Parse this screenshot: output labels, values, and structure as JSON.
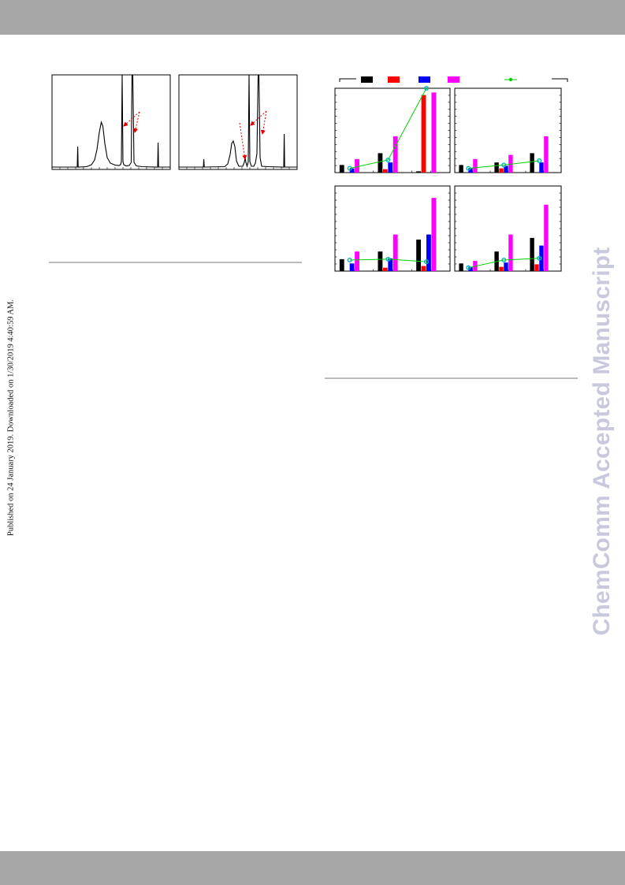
{
  "watermark": "ChemComm Accepted Manuscript",
  "published_note": "Published on 24 January 2019. Downloaded on 1/30/2019 4:40:59 AM.",
  "colors": {
    "bar_gray": "#a7a7a7",
    "watermark": "#c9c9de",
    "black": "#000000",
    "red": "#ff0000",
    "blue": "#0000ff",
    "magenta": "#ff00ff",
    "green": "#00d000",
    "arrow": "#e00000"
  },
  "chart_data": [
    {
      "type": "bar",
      "panel": "top-left",
      "groups": 3,
      "series": [
        {
          "color": "black",
          "values": [
            0.09,
            0.23,
            0.015
          ]
        },
        {
          "color": "red",
          "values": [
            0.0,
            0.04,
            0.92
          ]
        },
        {
          "color": "blue",
          "values": [
            0.05,
            0.12,
            0.0
          ]
        },
        {
          "color": "magenta",
          "values": [
            0.16,
            0.43,
            0.95
          ]
        }
      ],
      "line": [
        0.05,
        0.15,
        1.0
      ]
    },
    {
      "type": "bar",
      "panel": "top-right",
      "groups": 3,
      "series": [
        {
          "color": "black",
          "values": [
            0.09,
            0.12,
            0.23
          ]
        },
        {
          "color": "red",
          "values": [
            0.0,
            0.05,
            0.0
          ]
        },
        {
          "color": "blue",
          "values": [
            0.05,
            0.08,
            0.12
          ]
        },
        {
          "color": "magenta",
          "values": [
            0.16,
            0.21,
            0.43
          ]
        }
      ],
      "line": [
        0.05,
        0.09,
        0.14
      ]
    },
    {
      "type": "bar",
      "panel": "bottom-left",
      "groups": 3,
      "series": [
        {
          "color": "black",
          "values": [
            0.14,
            0.23,
            0.37
          ]
        },
        {
          "color": "red",
          "values": [
            0.0,
            0.04,
            0.06
          ]
        },
        {
          "color": "blue",
          "values": [
            0.09,
            0.15,
            0.43
          ]
        },
        {
          "color": "magenta",
          "values": [
            0.23,
            0.43,
            0.86
          ]
        }
      ],
      "line": [
        0.13,
        0.14,
        0.11
      ]
    },
    {
      "type": "bar",
      "panel": "bottom-right",
      "groups": 3,
      "series": [
        {
          "color": "black",
          "values": [
            0.09,
            0.23,
            0.39
          ]
        },
        {
          "color": "red",
          "values": [
            0.0,
            0.05,
            0.08
          ]
        },
        {
          "color": "blue",
          "values": [
            0.05,
            0.1,
            0.3
          ]
        },
        {
          "color": "magenta",
          "values": [
            0.12,
            0.43,
            0.78
          ]
        }
      ],
      "line": [
        0.04,
        0.13,
        0.15
      ]
    }
  ]
}
